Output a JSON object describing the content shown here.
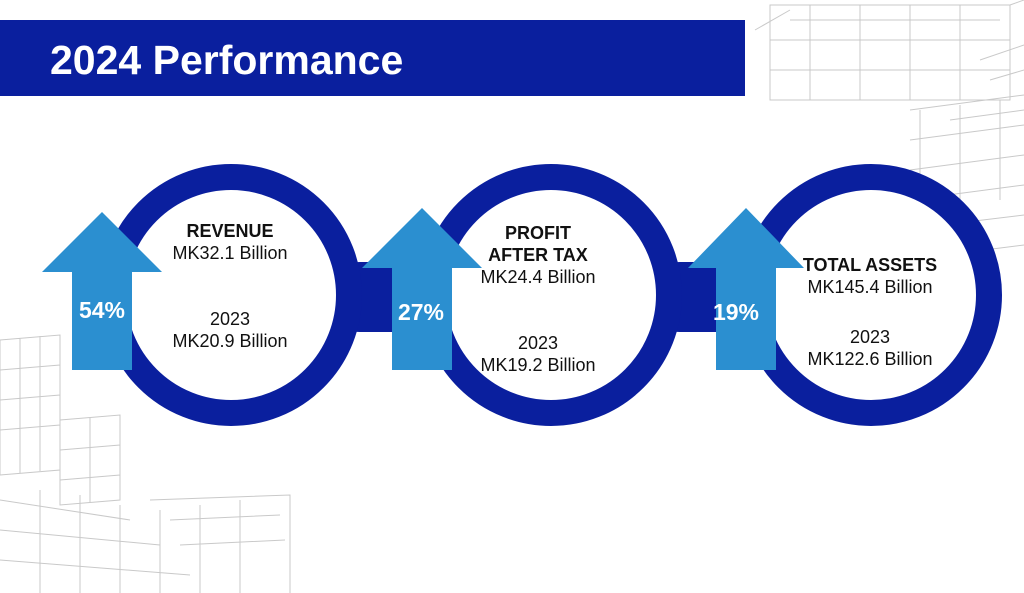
{
  "title": "2024 Performance",
  "colors": {
    "brand_blue": "#0a1f9e",
    "arrow_blue": "#2b8fd0"
  },
  "metrics": [
    {
      "name": "REVENUE",
      "value": "MK32.1 Billion",
      "prior_year": "2023",
      "prior_value": "MK20.9 Billion",
      "change": "54%"
    },
    {
      "name_line1": "PROFIT",
      "name_line2": "AFTER TAX",
      "value": "MK24.4 Billion",
      "prior_year": "2023",
      "prior_value": "MK19.2 Billion",
      "change": "27%"
    },
    {
      "name": "TOTAL ASSETS",
      "value": "MK145.4 Billion",
      "prior_year": "2023",
      "prior_value": "MK122.6 Billion",
      "change": "19%"
    }
  ]
}
